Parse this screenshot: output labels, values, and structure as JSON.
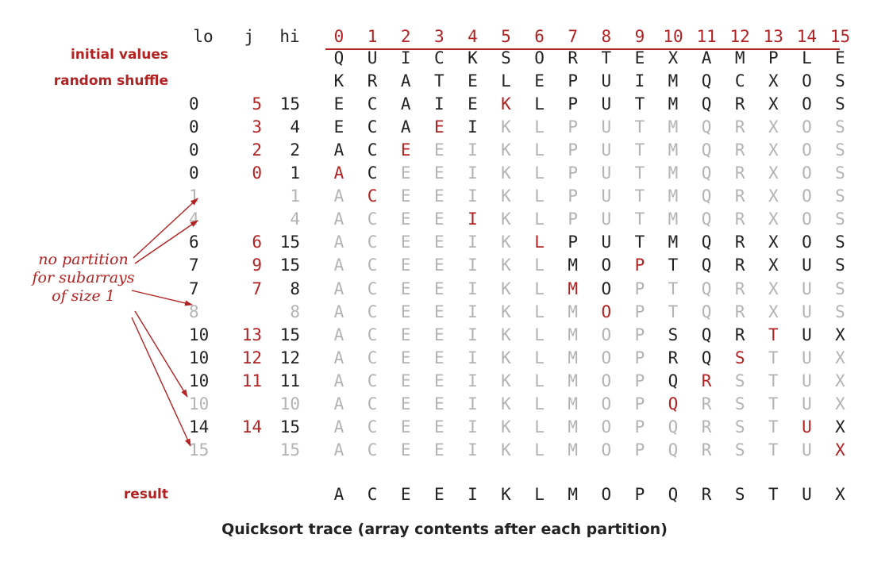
{
  "headers": {
    "lo": "lo",
    "j": "j",
    "hi": "hi"
  },
  "indices": [
    "0",
    "1",
    "2",
    "3",
    "4",
    "5",
    "6",
    "7",
    "8",
    "9",
    "10",
    "11",
    "12",
    "13",
    "14",
    "15"
  ],
  "labels": {
    "initial": "initial values",
    "shuffle": "random shuffle",
    "result": "result"
  },
  "note": [
    "no partition",
    "for subarrays",
    "of size 1"
  ],
  "caption": "Quicksort trace (array contents after each partition)",
  "colors": {
    "accent": "#b22222",
    "text": "#222222",
    "faded": "#b3b3b3"
  },
  "rows": [
    {
      "lo": "",
      "j": "",
      "hi": "",
      "cells": "QUICKSORTEXAMPLE",
      "style": "kkkkkkkkkkkkkkkk"
    },
    {
      "lo": "",
      "j": "",
      "hi": "",
      "cells": "KRATELEPUIMQCXOS",
      "style": "kkkkkkkkkkkkkkkk"
    },
    {
      "lo": "0",
      "j": "5",
      "hi": "15",
      "loStyle": "k",
      "jStyle": "r",
      "hiStyle": "k",
      "cells": "ECAIEKLPUTMQRXOS",
      "style": "kkkkkrkkkkkkkkkk"
    },
    {
      "lo": "0",
      "j": "3",
      "hi": "4",
      "loStyle": "k",
      "jStyle": "r",
      "hiStyle": "k",
      "cells": "ECAEIKLPUTMQRXOS",
      "style": "kkkrkggggggggggg"
    },
    {
      "lo": "0",
      "j": "2",
      "hi": "2",
      "loStyle": "k",
      "jStyle": "r",
      "hiStyle": "k",
      "cells": "ACEEIKLPUTMQRXOS",
      "style": "kkrggggggggggggg"
    },
    {
      "lo": "0",
      "j": "0",
      "hi": "1",
      "loStyle": "k",
      "jStyle": "r",
      "hiStyle": "k",
      "cells": "ACEEIKLPUTMQRXOS",
      "style": "rkgggggggggggggg"
    },
    {
      "lo": "1",
      "j": "",
      "hi": "1",
      "loStyle": "g",
      "jStyle": "g",
      "hiStyle": "g",
      "cells": "ACEEIKLPUTMQRXOS",
      "style": "grgggggggggggggg"
    },
    {
      "lo": "4",
      "j": "",
      "hi": "4",
      "loStyle": "g",
      "jStyle": "g",
      "hiStyle": "g",
      "cells": "ACEEIKLPUTMQRXOS",
      "style": "ggggrggggggggggg"
    },
    {
      "lo": "6",
      "j": "6",
      "hi": "15",
      "loStyle": "k",
      "jStyle": "r",
      "hiStyle": "k",
      "cells": "ACEEIKLPUTMQRXOS",
      "style": "ggggggrkkkkkkkkk"
    },
    {
      "lo": "7",
      "j": "9",
      "hi": "15",
      "loStyle": "k",
      "jStyle": "r",
      "hiStyle": "k",
      "cells": "ACEEIKLMOPTQRXUS",
      "style": "gggggggkkrkkkkkk"
    },
    {
      "lo": "7",
      "j": "7",
      "hi": "8",
      "loStyle": "k",
      "jStyle": "r",
      "hiStyle": "k",
      "cells": "ACEEIKLMOPTQRXUS",
      "style": "gggggggrkggggggg"
    },
    {
      "lo": "8",
      "j": "",
      "hi": "8",
      "loStyle": "g",
      "jStyle": "g",
      "hiStyle": "g",
      "cells": "ACEEIKLMOPTQRXUS",
      "style": "ggggggggrggggggg"
    },
    {
      "lo": "10",
      "j": "13",
      "hi": "15",
      "loStyle": "k",
      "jStyle": "r",
      "hiStyle": "k",
      "cells": "ACEEIKLMOPSQRTUX",
      "style": "ggggggggggkkkrkk"
    },
    {
      "lo": "10",
      "j": "12",
      "hi": "12",
      "loStyle": "k",
      "jStyle": "r",
      "hiStyle": "k",
      "cells": "ACEEIKLMOPRQSTUX",
      "style": "ggggggggggkkrggg"
    },
    {
      "lo": "10",
      "j": "11",
      "hi": "11",
      "loStyle": "k",
      "jStyle": "r",
      "hiStyle": "k",
      "cells": "ACEEIKLMOPQRSTUX",
      "style": "ggggggggggkrgggg"
    },
    {
      "lo": "10",
      "j": "",
      "hi": "10",
      "loStyle": "g",
      "jStyle": "g",
      "hiStyle": "g",
      "cells": "ACEEIKLMOPQRSTUX",
      "style": "ggggggggggrggggg"
    },
    {
      "lo": "14",
      "j": "14",
      "hi": "15",
      "loStyle": "k",
      "jStyle": "r",
      "hiStyle": "k",
      "cells": "ACEEIKLMOPQRSTUX",
      "style": "ggggggggggggggrk"
    },
    {
      "lo": "15",
      "j": "",
      "hi": "15",
      "loStyle": "g",
      "jStyle": "g",
      "hiStyle": "g",
      "cells": "ACEEIKLMOPQRSTUX",
      "style": "gggggggggggggggr"
    }
  ],
  "result": "ACEEIKLMOPQRSTUX"
}
